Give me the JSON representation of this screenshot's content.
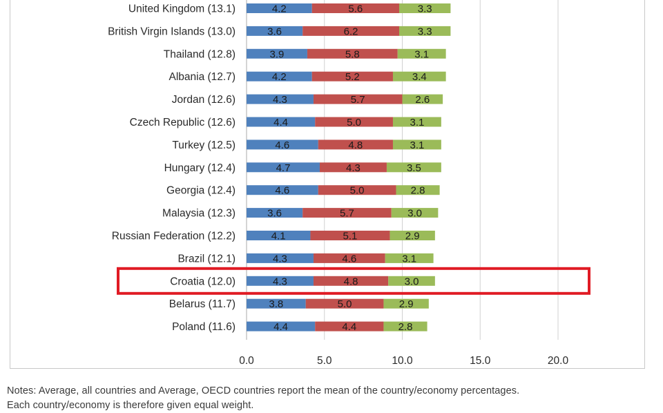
{
  "chart_data": {
    "type": "bar",
    "stacked": true,
    "orientation": "horizontal",
    "categories": [
      "United Kingdom (13.1)",
      "British Virgin Islands (13.0)",
      "Thailand (12.8)",
      "Albania (12.7)",
      "Jordan (12.6)",
      "Czech Republic (12.6)",
      "Turkey (12.5)",
      "Hungary (12.4)",
      "Georgia (12.4)",
      "Malaysia (12.3)",
      "Russian Federation (12.2)",
      "Brazil (12.1)",
      "Croatia (12.0)",
      "Belarus (11.7)",
      "Poland (11.6)"
    ],
    "series": [
      {
        "values": [
          4.2,
          3.6,
          3.9,
          4.2,
          4.3,
          4.4,
          4.6,
          4.7,
          4.6,
          3.6,
          4.1,
          4.3,
          4.3,
          3.8,
          4.4
        ],
        "color": "#4f81bd"
      },
      {
        "values": [
          5.6,
          6.2,
          5.8,
          5.2,
          5.7,
          5.0,
          4.8,
          4.3,
          5.0,
          5.7,
          5.1,
          4.6,
          4.8,
          5.0,
          4.4
        ],
        "color": "#c0504d"
      },
      {
        "values": [
          3.3,
          3.3,
          3.1,
          3.4,
          2.6,
          3.1,
          3.1,
          3.5,
          2.8,
          3.0,
          2.9,
          3.1,
          3.0,
          2.9,
          2.8
        ],
        "color": "#9bbb59"
      }
    ],
    "xlim": [
      0,
      20
    ],
    "xticks": [
      "0.0",
      "5.0",
      "10.0",
      "15.0",
      "20.0"
    ],
    "grid": true,
    "highlighted_category": "Croatia (12.0)",
    "highlight_color": "#e01b24"
  },
  "notes": {
    "line1": "Notes: Average, all countries and Average, OECD countries report the mean of the country/economy percentages.",
    "line2": "Each country/economy is therefore given equal weight."
  }
}
